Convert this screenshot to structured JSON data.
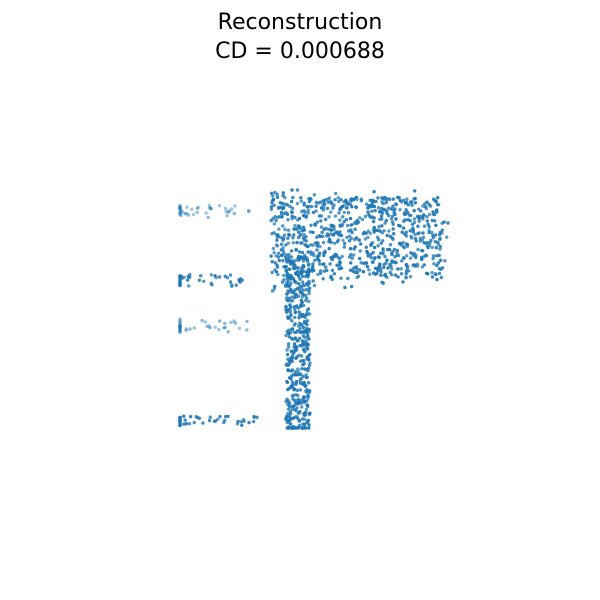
{
  "chart_data": {
    "type": "scatter",
    "title": "Reconstruction",
    "subtitle": "CD = 0.000688",
    "xlabel": "",
    "ylabel": "",
    "axes_visible": false,
    "grid": false,
    "legend": "none",
    "color": "#1f77b4",
    "xlim": [
      0,
      1
    ],
    "ylim": [
      0,
      1
    ],
    "point_count": 1450,
    "series": [
      {
        "values": [
          {
            "x": 0.04,
            "y": 0.03,
            "n": 50,
            "alpha": 0.95
          },
          {
            "x": 0.03,
            "y": 0.62,
            "n": 45,
            "alpha": 0.95
          },
          {
            "x": 0.05,
            "y": 0.43,
            "n": 40,
            "alpha": 0.55
          },
          {
            "x": 0.06,
            "y": 0.91,
            "n": 40,
            "alpha": 0.55
          },
          {
            "x": 0.44,
            "y": 0.35,
            "n": 460,
            "alpha": 0.95
          },
          {
            "x": 0.7,
            "y": 0.8,
            "n": 700,
            "alpha": 0.95
          },
          {
            "x": 0.38,
            "y": 0.78,
            "n": 115,
            "alpha": 0.95
          }
        ]
      }
    ]
  }
}
